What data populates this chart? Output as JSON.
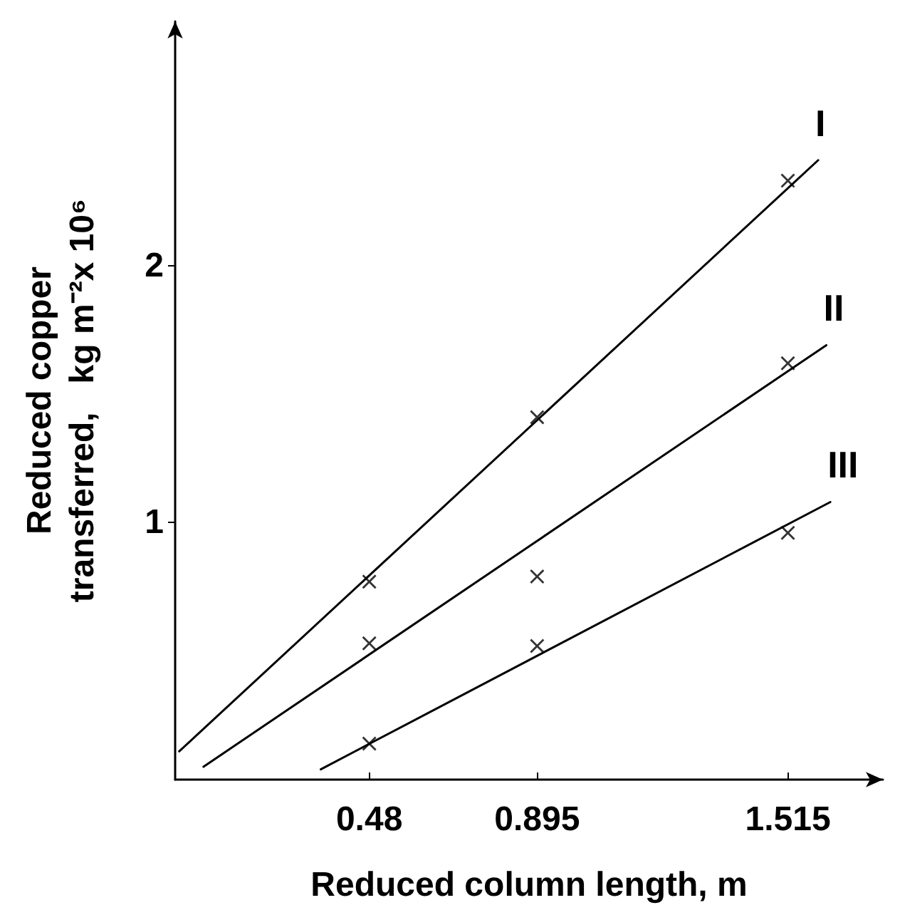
{
  "chart_data": {
    "type": "scatter",
    "xlabel": "Reduced column length, m",
    "ylabel": "Reduced copper\ntransferred,   kg m⁻²x 10⁶",
    "xlim": [
      0,
      1.75
    ],
    "ylim": [
      0,
      2.95
    ],
    "xticks": [
      0.48,
      0.895,
      1.515
    ],
    "yticks": [
      1,
      2
    ],
    "grid": false,
    "legend": false,
    "marker": "cross",
    "series": [
      {
        "color": "#000000",
        "x": [
          0.48,
          0.895,
          1.515
        ],
        "values": [
          0.77,
          1.41,
          2.33
        ]
      },
      {
        "color": "#000000",
        "x": [
          0.48,
          0.895,
          1.515
        ],
        "values": [
          0.53,
          0.79,
          1.62
        ]
      },
      {
        "color": "#000000",
        "x": [
          0.48,
          0.895,
          1.515
        ],
        "values": [
          0.14,
          0.52,
          0.96
        ]
      },
      {
        "type": "line",
        "name": "I",
        "color": "#000000",
        "marker": "none",
        "line_style": "solid",
        "x": [
          0.01,
          1.59
        ],
        "values": [
          0.11,
          2.41
        ]
      },
      {
        "type": "line",
        "name": "II",
        "color": "#000000",
        "marker": "none",
        "line_style": "solid",
        "x": [
          0.07,
          1.61
        ],
        "values": [
          0.05,
          1.69
        ]
      },
      {
        "type": "line",
        "name": "III",
        "color": "#000000",
        "marker": "none",
        "line_style": "solid",
        "x": [
          0.36,
          1.62
        ],
        "values": [
          0.04,
          1.08
        ]
      }
    ]
  }
}
